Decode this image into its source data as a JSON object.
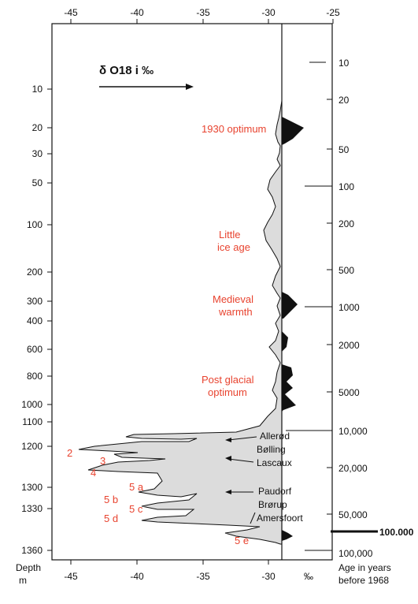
{
  "chart_data": {
    "type": "area",
    "title": "δ O18 i ‰",
    "x_axis": {
      "ticks": [
        "-45",
        "-40",
        "-35",
        "-30",
        "-25"
      ],
      "range": [
        -45,
        -25
      ],
      "unit_label": "‰"
    },
    "depth_axis": {
      "label_line1": "Depth",
      "label_line2": "m",
      "ticks": [
        "10",
        "20",
        "30",
        "50",
        "100",
        "200",
        "300",
        "400",
        "600",
        "800",
        "1000",
        "1100",
        "1200",
        "1300",
        "1330",
        "1360"
      ]
    },
    "age_axis": {
      "label_line1": "Age in years",
      "label_line2": "before 1968",
      "ticks": [
        "10",
        "20",
        "50",
        "100",
        "200",
        "500",
        "1000",
        "2000",
        "5000",
        "10,000",
        "20,000",
        "50,000",
        "100,000"
      ],
      "highlight": "100.000"
    },
    "reference_value": -28.8,
    "profile": [
      {
        "depth": 20,
        "d18O": -28.3
      },
      {
        "depth": 30,
        "d18O": -28.9
      },
      {
        "depth": 50,
        "d18O": -30.7
      },
      {
        "depth": 100,
        "d18O": -30.1
      },
      {
        "depth": 150,
        "d18O": -31.6
      },
      {
        "depth": 200,
        "d18O": -29.0
      },
      {
        "depth": 300,
        "d18O": -27.8
      },
      {
        "depth": 600,
        "d18O": -30.4
      },
      {
        "depth": 800,
        "d18O": -28.3
      },
      {
        "depth": 1000,
        "d18O": -28.6
      },
      {
        "depth": 1100,
        "d18O": -31.0
      },
      {
        "depth": 1200,
        "d18O": -44.0
      },
      {
        "depth": 1240,
        "d18O": -40.5
      },
      {
        "depth": 1260,
        "d18O": -43.5
      },
      {
        "depth": 1300,
        "d18O": -38.5
      },
      {
        "depth": 1320,
        "d18O": -40.0
      },
      {
        "depth": 1340,
        "d18O": -38.0
      },
      {
        "depth": 1350,
        "d18O": -32.0
      },
      {
        "depth": 1360,
        "d18O": -29.5
      }
    ],
    "annotations": {
      "optimum_1930": "1930 optimum",
      "little_ice_age_1": "Little",
      "little_ice_age_2": "ice age",
      "medieval_1": "Medieval",
      "medieval_2": "warmth",
      "postglacial_1": "Post glacial",
      "postglacial_2": "optimum",
      "allerod": "Allerød",
      "bolling": "Bølling",
      "lascaux": "Lascaux",
      "paudorf": "Paudorf",
      "brorup": "Brørup",
      "amersfoort": "Amersfoort",
      "n2": "2",
      "n3": "3",
      "n4": "4",
      "n5a": "5 a",
      "n5b": "5 b",
      "n5c": "5 c",
      "n5d": "5 d",
      "n5e": "5 e"
    }
  }
}
